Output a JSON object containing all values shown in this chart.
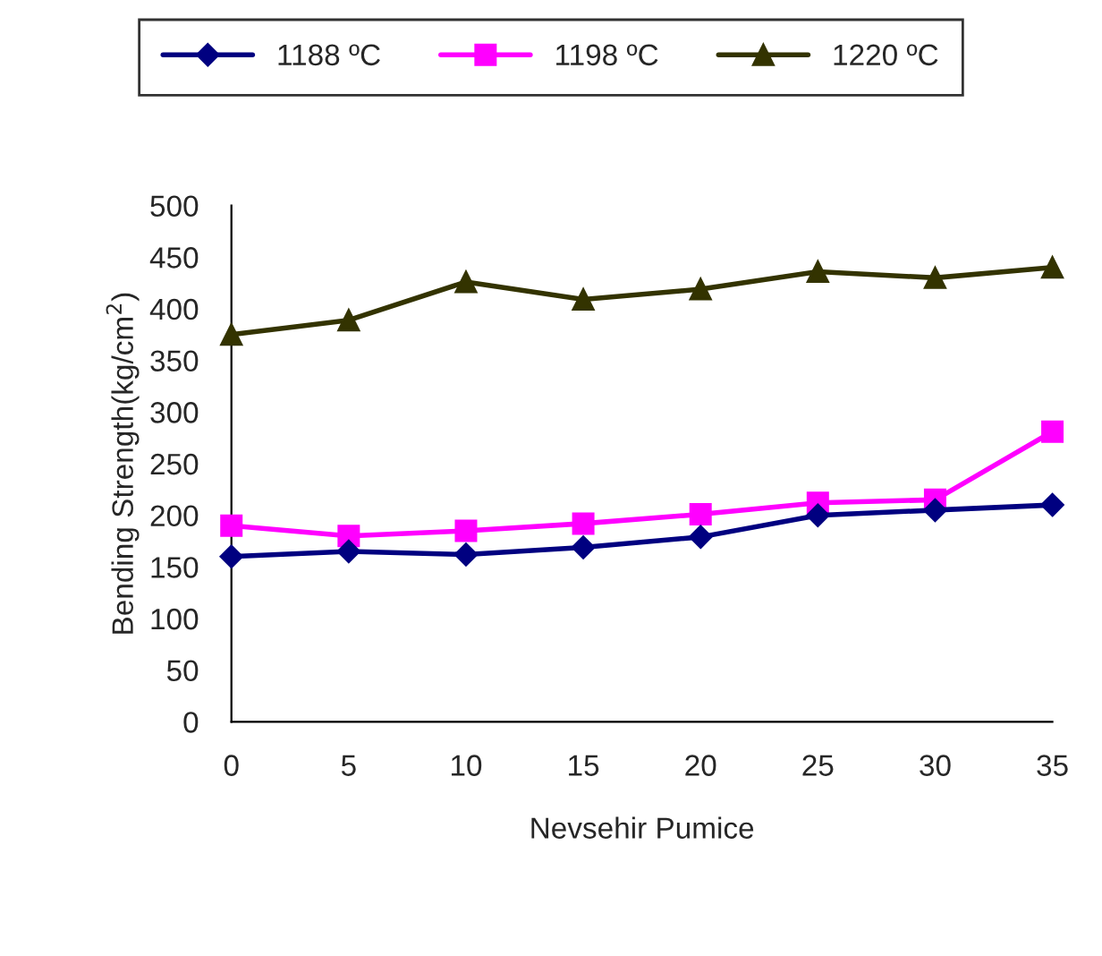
{
  "chart_data": {
    "type": "line",
    "xlabel": "Nevsehir Pumice",
    "ylabel": "Bending Strength(kg/cm$^{2}$)",
    "x": [
      0,
      5,
      10,
      15,
      20,
      25,
      30,
      35
    ],
    "series": [
      {
        "name": "1188 ºC",
        "color": "#000080",
        "marker": "diamond",
        "values": [
          160,
          165,
          162,
          169,
          179,
          200,
          205,
          210
        ]
      },
      {
        "name": "1198 ºC",
        "color": "#ff00ff",
        "marker": "square",
        "values": [
          190,
          180,
          185,
          192,
          201,
          212,
          215,
          281
        ]
      },
      {
        "name": "1220 ºC",
        "color": "#333300",
        "marker": "triangle",
        "values": [
          375,
          389,
          426,
          409,
          419,
          436,
          430,
          440
        ]
      }
    ],
    "xlim": [
      0,
      35
    ],
    "xticks": [
      0,
      5,
      10,
      15,
      20,
      25,
      30,
      35
    ],
    "ylim": [
      0,
      500
    ],
    "yticks": [
      0,
      50,
      100,
      150,
      200,
      250,
      300,
      350,
      400,
      450,
      500
    ],
    "grid": false,
    "legend": "top",
    "line_style": "solid"
  }
}
